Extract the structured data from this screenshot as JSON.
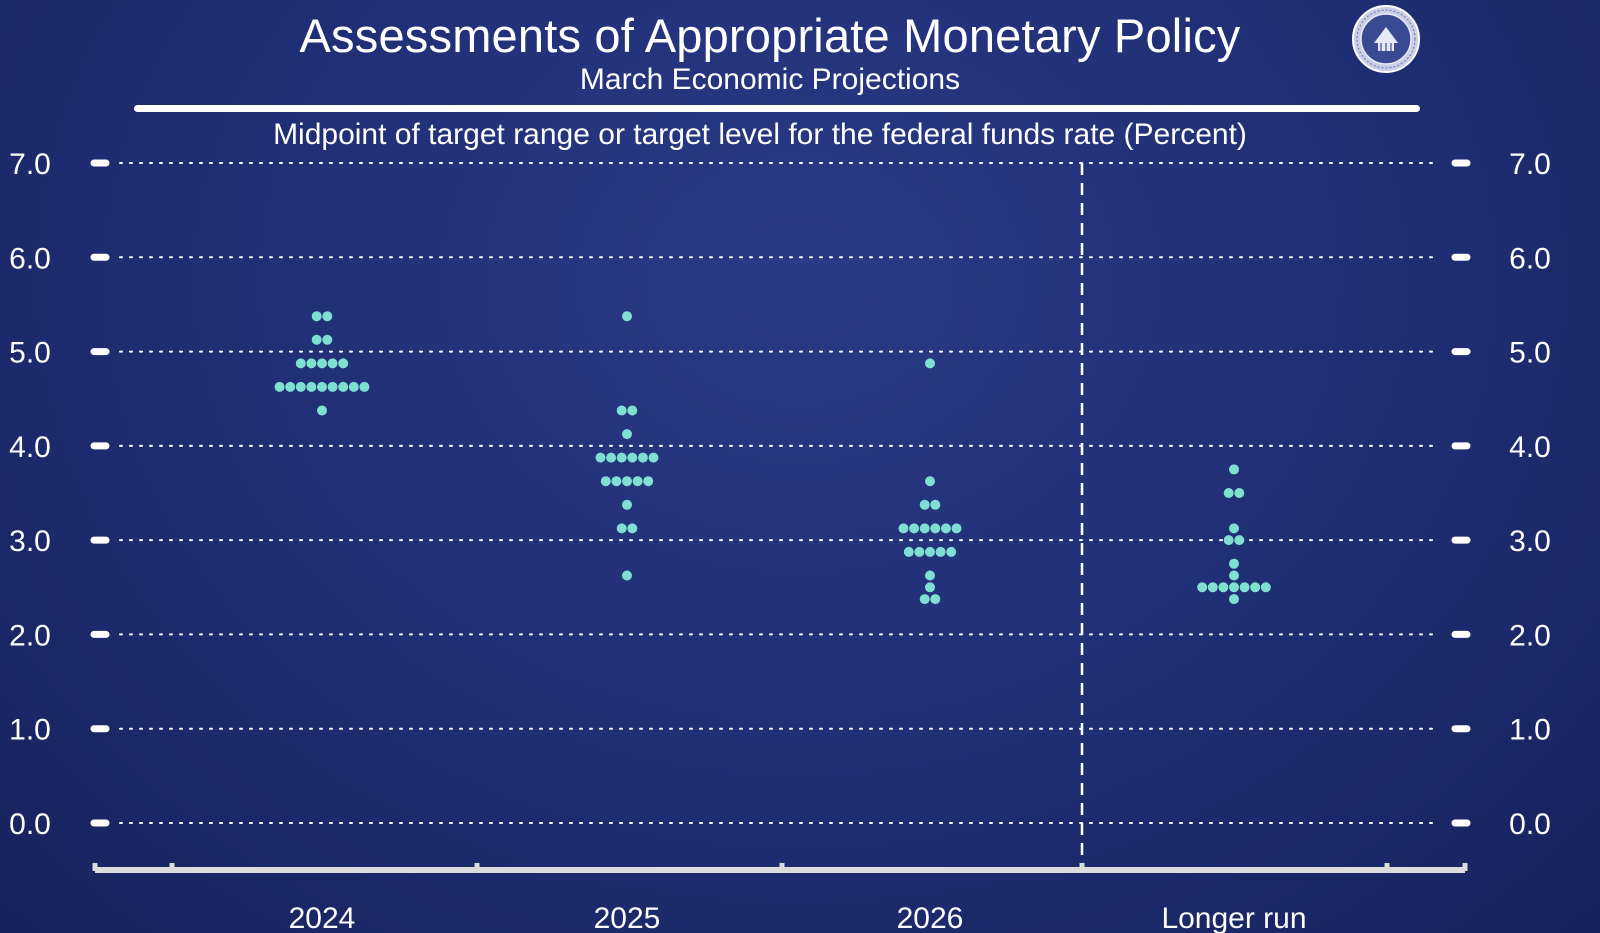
{
  "header": {
    "title": "Assessments of Appropriate Monetary Policy",
    "subtitle": "March Economic Projections"
  },
  "colors": {
    "background": "#1f2d73",
    "dot": "#7fe0d2",
    "grid": "#ffffff"
  },
  "icons": {
    "seal": "federal-reserve-seal-icon"
  },
  "chart_data": {
    "type": "scatter",
    "title": "Midpoint of target range or target level for the federal funds rate (Percent)",
    "ylabel": "",
    "xlabel": "",
    "ylim": [
      0,
      7
    ],
    "yticks": [
      7.0,
      6.0,
      5.0,
      4.0,
      3.0,
      2.0,
      1.0,
      0.0
    ],
    "ytick_labels": [
      "7.0",
      "6.0",
      "5.0",
      "4.0",
      "3.0",
      "2.0",
      "1.0",
      "0.0"
    ],
    "y_axis_both_sides": true,
    "grid": "dotted horizontal",
    "categories": [
      "2024",
      "2025",
      "2026",
      "Longer run"
    ],
    "separator_before": "Longer run",
    "series": [
      {
        "category": "2024",
        "rate_counts": [
          {
            "rate": 5.375,
            "count": 2
          },
          {
            "rate": 5.125,
            "count": 2
          },
          {
            "rate": 4.875,
            "count": 5
          },
          {
            "rate": 4.625,
            "count": 9
          },
          {
            "rate": 4.375,
            "count": 1
          }
        ]
      },
      {
        "category": "2025",
        "rate_counts": [
          {
            "rate": 5.375,
            "count": 1
          },
          {
            "rate": 4.375,
            "count": 2
          },
          {
            "rate": 4.125,
            "count": 1
          },
          {
            "rate": 3.875,
            "count": 6
          },
          {
            "rate": 3.625,
            "count": 5
          },
          {
            "rate": 3.375,
            "count": 1
          },
          {
            "rate": 3.125,
            "count": 2
          },
          {
            "rate": 2.625,
            "count": 1
          }
        ]
      },
      {
        "category": "2026",
        "rate_counts": [
          {
            "rate": 4.875,
            "count": 1
          },
          {
            "rate": 3.625,
            "count": 1
          },
          {
            "rate": 3.375,
            "count": 2
          },
          {
            "rate": 3.125,
            "count": 6
          },
          {
            "rate": 2.875,
            "count": 5
          },
          {
            "rate": 2.625,
            "count": 1
          },
          {
            "rate": 2.5,
            "count": 1
          },
          {
            "rate": 2.375,
            "count": 2
          }
        ]
      },
      {
        "category": "Longer run",
        "rate_counts": [
          {
            "rate": 3.75,
            "count": 1
          },
          {
            "rate": 3.5,
            "count": 2
          },
          {
            "rate": 3.125,
            "count": 1
          },
          {
            "rate": 3.0,
            "count": 2
          },
          {
            "rate": 2.75,
            "count": 1
          },
          {
            "rate": 2.625,
            "count": 1
          },
          {
            "rate": 2.5,
            "count": 7
          },
          {
            "rate": 2.375,
            "count": 1
          }
        ]
      }
    ]
  }
}
